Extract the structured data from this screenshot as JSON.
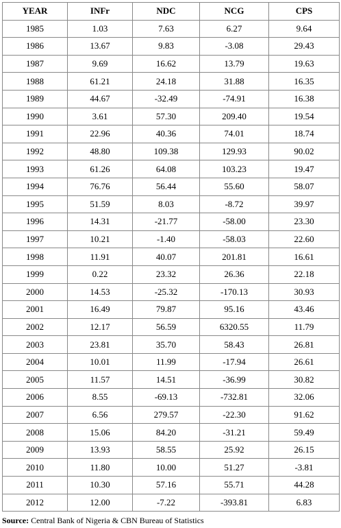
{
  "table": {
    "header": [
      "YEAR",
      "INFr",
      "NDC",
      "NCG",
      "CPS"
    ],
    "rows": [
      [
        "1985",
        "1.03",
        "7.63",
        "6.27",
        "9.64"
      ],
      [
        "1986",
        "13.67",
        "9.83",
        "-3.08",
        "29.43"
      ],
      [
        "1987",
        "9.69",
        "16.62",
        "13.79",
        "19.63"
      ],
      [
        "1988",
        "61.21",
        "24.18",
        "31.88",
        "16.35"
      ],
      [
        "1989",
        "44.67",
        "-32.49",
        "-74.91",
        "16.38"
      ],
      [
        "1990",
        "3.61",
        "57.30",
        "209.40",
        "19.54"
      ],
      [
        "1991",
        "22.96",
        "40.36",
        "74.01",
        "18.74"
      ],
      [
        "1992",
        "48.80",
        "109.38",
        "129.93",
        "90.02"
      ],
      [
        "1993",
        "61.26",
        "64.08",
        "103.23",
        "19.47"
      ],
      [
        "1994",
        "76.76",
        "56.44",
        "55.60",
        "58.07"
      ],
      [
        "1995",
        "51.59",
        "8.03",
        "-8.72",
        "39.97"
      ],
      [
        "1996",
        "14.31",
        "-21.77",
        "-58.00",
        "23.30"
      ],
      [
        "1997",
        "10.21",
        "-1.40",
        "-58.03",
        "22.60"
      ],
      [
        "1998",
        "11.91",
        "40.07",
        "201.81",
        "16.61"
      ],
      [
        "1999",
        "0.22",
        "23.32",
        "26.36",
        "22.18"
      ],
      [
        "2000",
        "14.53",
        "-25.32",
        "-170.13",
        "30.93"
      ],
      [
        "2001",
        "16.49",
        "79.87",
        "95.16",
        "43.46"
      ],
      [
        "2002",
        "12.17",
        "56.59",
        "6320.55",
        "11.79"
      ],
      [
        "2003",
        "23.81",
        "35.70",
        "58.43",
        "26.81"
      ],
      [
        "2004",
        "10.01",
        "11.99",
        "-17.94",
        "26.61"
      ],
      [
        "2005",
        "11.57",
        "14.51",
        "-36.99",
        "30.82"
      ],
      [
        "2006",
        "8.55",
        "-69.13",
        "-732.81",
        "32.06"
      ],
      [
        "2007",
        "6.56",
        "279.57",
        "-22.30",
        "91.62"
      ],
      [
        "2008",
        "15.06",
        "84.20",
        "-31.21",
        "59.49"
      ],
      [
        "2009",
        "13.93",
        "58.55",
        "25.92",
        "26.15"
      ],
      [
        "2010",
        "11.80",
        "10.00",
        "51.27",
        "-3.81"
      ],
      [
        "2011",
        "10.30",
        "57.16",
        "55.71",
        "44.28"
      ],
      [
        "2012",
        "12.00",
        "-7.22",
        "-393.81",
        "6.83"
      ]
    ]
  },
  "source": {
    "label": "Source:",
    "text": "Central Bank of Nigeria & CBN Bureau of Statistics"
  }
}
